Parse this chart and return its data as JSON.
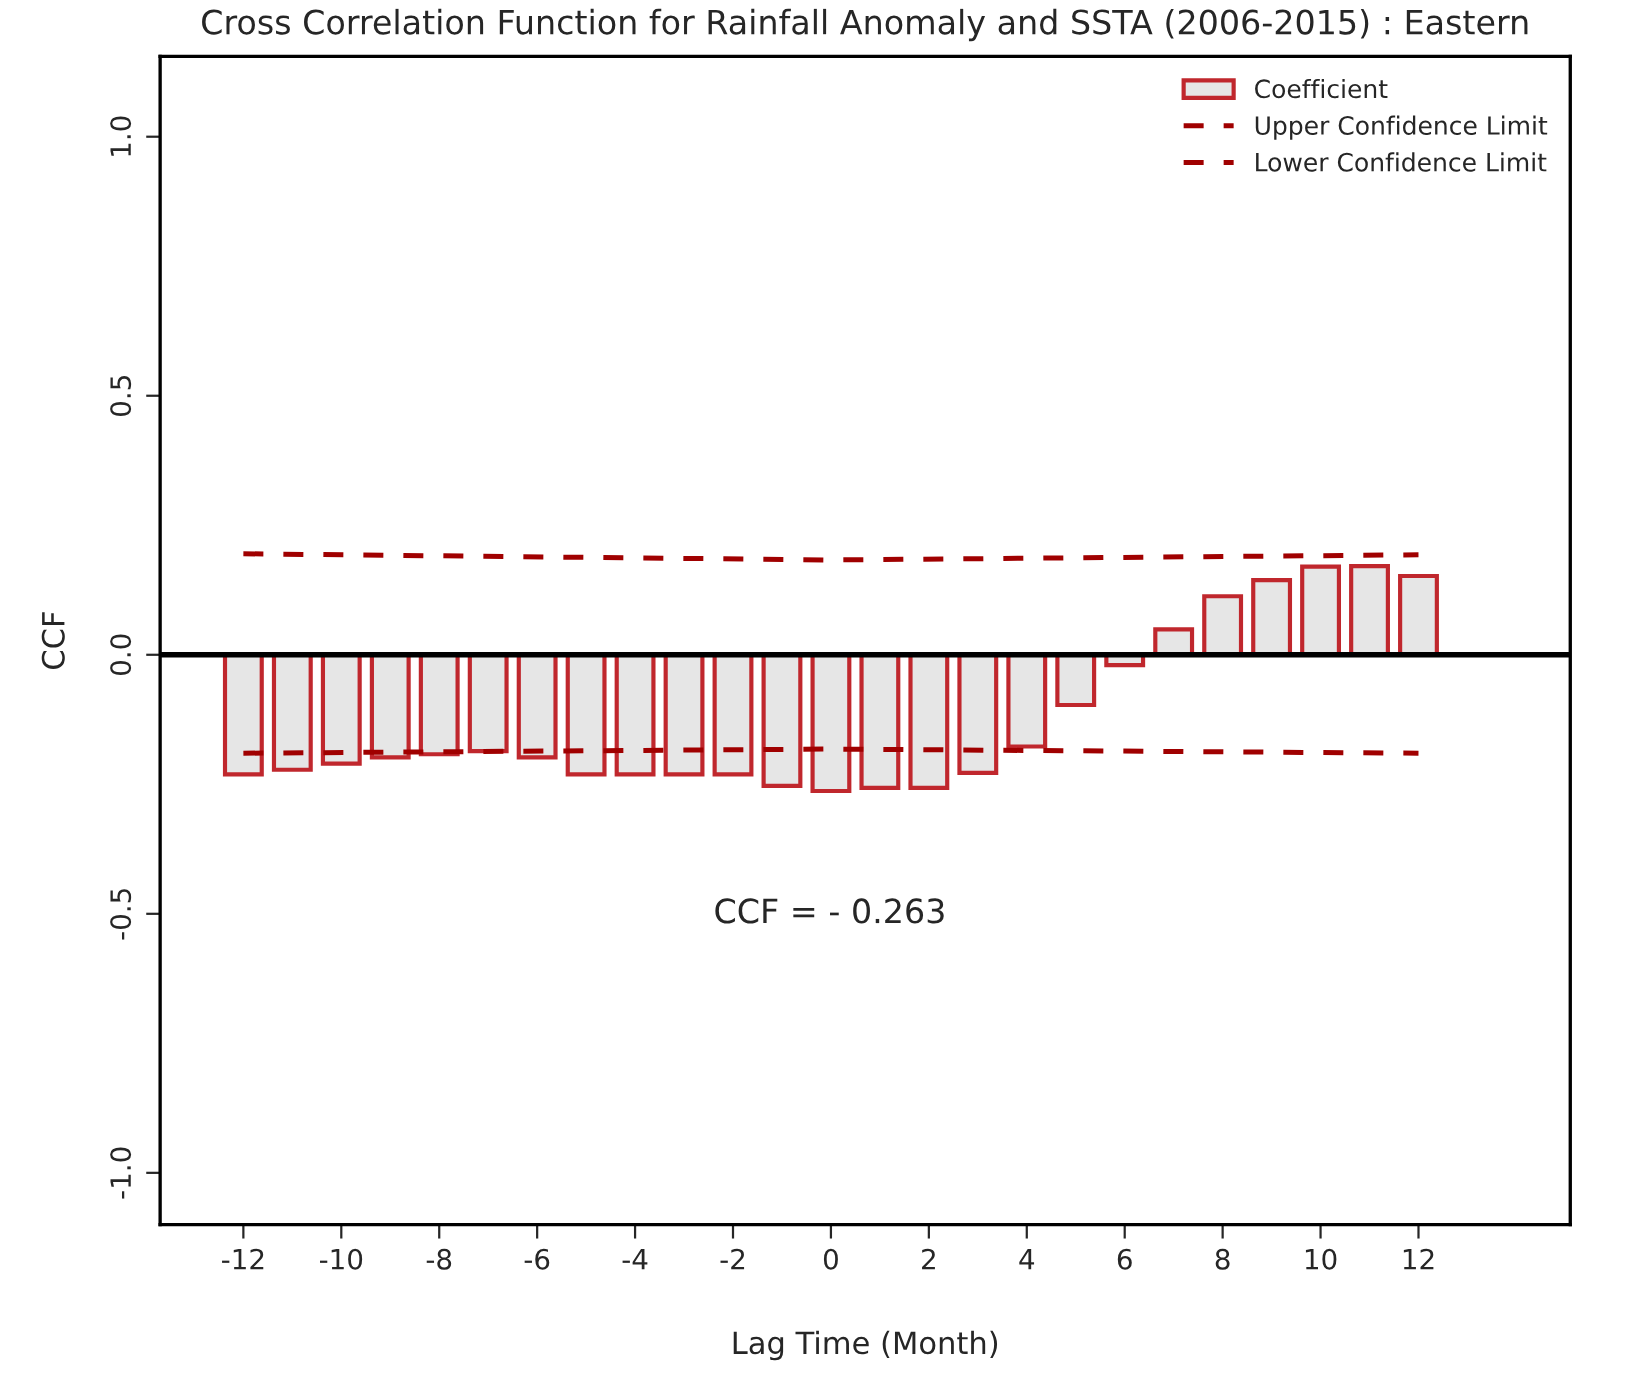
{
  "chart_data": {
    "type": "bar",
    "title": "Cross Correlation Function for Rainfall Anomaly and SSTA (2006-2015) : Eastern",
    "xlabel": "Lag Time (Month)",
    "ylabel": "CCF",
    "x": [
      -12,
      -11,
      -10,
      -9,
      -8,
      -7,
      -6,
      -5,
      -4,
      -3,
      -2,
      -1,
      0,
      1,
      2,
      3,
      4,
      5,
      6,
      7,
      8,
      9,
      10,
      11,
      12
    ],
    "series": [
      {
        "name": "Coefficient",
        "color": "#c0272d",
        "values": [
          -0.231,
          -0.222,
          -0.21,
          -0.198,
          -0.192,
          -0.186,
          -0.198,
          -0.231,
          -0.231,
          -0.231,
          -0.231,
          -0.253,
          -0.263,
          -0.257,
          -0.257,
          -0.228,
          -0.177,
          -0.097,
          -0.02,
          0.049,
          0.113,
          0.144,
          0.17,
          0.171,
          0.152
        ]
      },
      {
        "name": "Upper Confidence Limit",
        "type": "line",
        "line_style": "dashed",
        "color": "#a00000",
        "x": [
          -12,
          0,
          12
        ],
        "values": [
          0.195,
          0.183,
          0.193
        ]
      },
      {
        "name": "Lower Confidence Limit",
        "type": "line",
        "line_style": "dashed",
        "color": "#a00000",
        "x": [
          -12,
          0,
          12
        ],
        "values": [
          -0.19,
          -0.182,
          -0.19
        ]
      }
    ],
    "xlim": [
      -13.7,
      15.1
    ],
    "xticks": [
      -12,
      -10,
      -8,
      -6,
      -4,
      -2,
      0,
      2,
      4,
      6,
      8,
      10,
      12
    ],
    "ylim": [
      -1.1,
      1.155
    ],
    "yticks": [
      {
        "value": -1,
        "label": "-1.0"
      },
      {
        "value": -0.5,
        "label": "-0.5"
      },
      {
        "value": 0,
        "label": "0.0"
      },
      {
        "value": 0.5,
        "label": "0.5"
      },
      {
        "value": 1,
        "label": "1.0"
      }
    ],
    "ref_lines": [
      {
        "axis": "y",
        "value": 0,
        "color": "#000000"
      }
    ],
    "annotations": [
      "CCF = - 0.263"
    ],
    "legend": "top right",
    "grid": false
  }
}
